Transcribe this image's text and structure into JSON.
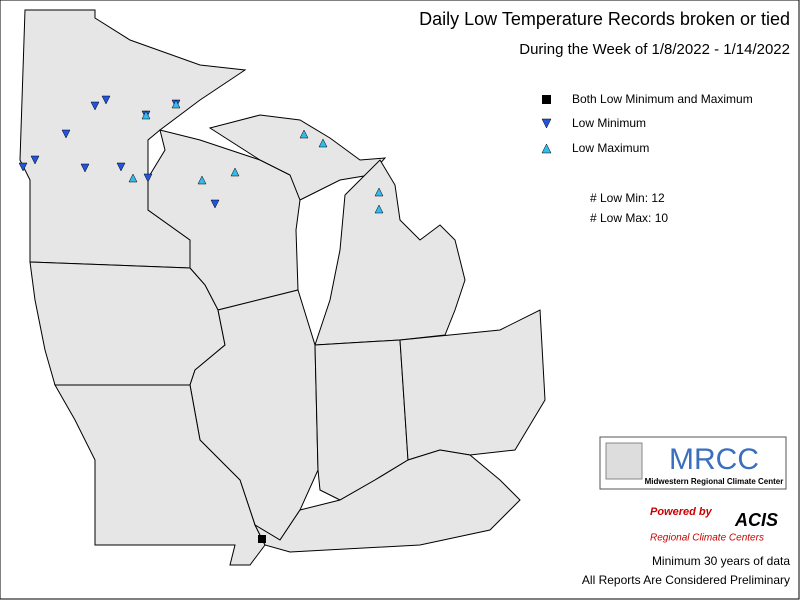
{
  "header": {
    "title": "Daily Low Temperature Records broken or tied",
    "subtitle": "During the Week of 1/8/2022 - 1/14/2022"
  },
  "legend": {
    "items": [
      "Both Low Minimum and Maximum",
      "Low Minimum",
      "Low Maximum"
    ]
  },
  "counts": [
    "# Low Min: 12",
    "# Low Max: 10"
  ],
  "logo": {
    "name": "MRCC",
    "full_name": "Midwestern Regional Climate Center",
    "powered": "Powered by",
    "acis": "ACIS",
    "rcc": "Regional Climate Centers"
  },
  "footer": [
    "Minimum 30 years of data",
    "All Reports Are Considered Preliminary"
  ]
}
